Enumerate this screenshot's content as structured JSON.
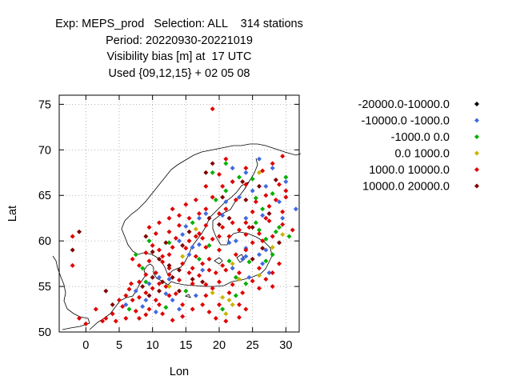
{
  "chart_data": {
    "type": "scatter",
    "title_lines": [
      "Exp: MEPS_prod   Selection: ALL    314 stations",
      "Period: 20220930-20221019",
      "Visibility bias [m] at  17 UTC",
      "Used {09,12,15} + 02 05 08"
    ],
    "xlabel": "Lon",
    "ylabel": "Lat",
    "xlim": [
      -4,
      32
    ],
    "ylim": [
      50,
      76
    ],
    "x_ticks": [
      0,
      5,
      10,
      15,
      20,
      25,
      30
    ],
    "y_ticks": [
      50,
      55,
      60,
      65,
      70,
      75
    ],
    "grid": true,
    "legend_position": "right",
    "series": [
      {
        "name": "-20000.0-10000.0",
        "color": "#000000",
        "points": []
      },
      {
        "name": "-10000.0 -1000.0",
        "color": "#4169e1",
        "points": [
          [
            26,
            69
          ],
          [
            22,
            68
          ],
          [
            28,
            68
          ],
          [
            24,
            67.5
          ],
          [
            30,
            66.5
          ],
          [
            22,
            66.5
          ],
          [
            27,
            66
          ],
          [
            25,
            65.5
          ],
          [
            23,
            64.8
          ],
          [
            29,
            64.3
          ],
          [
            31.5,
            63.5
          ],
          [
            29.5,
            62.5
          ],
          [
            24,
            62.5
          ],
          [
            26.5,
            62.8
          ],
          [
            17,
            62.5
          ],
          [
            18,
            63
          ],
          [
            15,
            61.6
          ],
          [
            14.5,
            60.7
          ],
          [
            14,
            60
          ],
          [
            16,
            59.3
          ],
          [
            21.5,
            59.8
          ],
          [
            22.5,
            60
          ],
          [
            23.5,
            58
          ],
          [
            24,
            58.3
          ],
          [
            26,
            58.5
          ],
          [
            27,
            59
          ],
          [
            26.5,
            57.5
          ],
          [
            22,
            57
          ],
          [
            24.5,
            56
          ],
          [
            27.5,
            56.5
          ],
          [
            12.5,
            55.8
          ],
          [
            11,
            56
          ],
          [
            9.5,
            55.3
          ],
          [
            12,
            54.2
          ],
          [
            14,
            52.5
          ],
          [
            16.5,
            54
          ],
          [
            9,
            53.5
          ],
          [
            7.5,
            54.5
          ],
          [
            8.5,
            52.8
          ],
          [
            10.5,
            52.2
          ],
          [
            13,
            53.5
          ],
          [
            6,
            53
          ],
          [
            15.5,
            58.5
          ],
          [
            17,
            59.6
          ],
          [
            21,
            64.3
          ],
          [
            20.5,
            62.8
          ],
          [
            24,
            59.2
          ],
          [
            17.5,
            56.8
          ]
        ]
      },
      {
        "name": "-1000.0 0.0",
        "color": "#00b000",
        "points": [
          [
            21,
            68.5
          ],
          [
            19,
            67.5
          ],
          [
            23,
            67
          ],
          [
            25,
            66.8
          ],
          [
            28,
            65.2
          ],
          [
            21,
            65.5
          ],
          [
            19.5,
            64.5
          ],
          [
            26.5,
            63.5
          ],
          [
            25.5,
            62
          ],
          [
            28.5,
            61
          ],
          [
            29,
            61.5
          ],
          [
            30.5,
            60.5
          ],
          [
            27,
            60.2
          ],
          [
            28,
            58.5
          ],
          [
            27,
            57.8
          ],
          [
            21.5,
            57.8
          ],
          [
            22.5,
            56
          ],
          [
            24,
            55.3
          ],
          [
            17,
            58
          ],
          [
            16,
            62
          ],
          [
            12.5,
            59.8
          ],
          [
            9.5,
            60
          ],
          [
            7.5,
            58.5
          ],
          [
            8.5,
            57
          ],
          [
            9,
            55.5
          ],
          [
            6.5,
            52.5
          ],
          [
            12,
            52.7
          ],
          [
            15,
            54.5
          ],
          [
            20.5,
            52.5
          ],
          [
            22.5,
            54
          ],
          [
            24.5,
            57.7
          ],
          [
            25.5,
            64.7
          ],
          [
            30,
            67
          ],
          [
            18.5,
            59.5
          ],
          [
            26,
            61.2
          ]
        ]
      },
      {
        "name": "0.0 1000.0",
        "color": "#c8b400",
        "points": [
          [
            26,
            67.5
          ],
          [
            16.5,
            61.3
          ],
          [
            23,
            55.8
          ],
          [
            20.5,
            53.8
          ],
          [
            21.5,
            53.5
          ],
          [
            22,
            53
          ],
          [
            21,
            52
          ],
          [
            26,
            56.2
          ],
          [
            12.5,
            55
          ],
          [
            19,
            54.3
          ],
          [
            22,
            57.5
          ],
          [
            28,
            59.3
          ],
          [
            29.5,
            60.7
          ],
          [
            14.5,
            58.3
          ]
        ]
      },
      {
        "name": "1000.0 10000.0",
        "color": "#e00000",
        "points": [
          [
            19,
            74.5
          ],
          [
            21,
            69
          ],
          [
            24,
            68
          ],
          [
            29.5,
            69.3
          ],
          [
            28,
            68.5
          ],
          [
            26.5,
            67.7
          ],
          [
            20,
            67.3
          ],
          [
            22,
            66.5
          ],
          [
            29,
            66.2
          ],
          [
            24,
            66.2
          ],
          [
            18,
            66
          ],
          [
            20.5,
            66
          ],
          [
            30,
            65.5
          ],
          [
            27,
            65
          ],
          [
            19,
            64.8
          ],
          [
            22.5,
            64.5
          ],
          [
            25.5,
            64.3
          ],
          [
            27.5,
            63.8
          ],
          [
            29.5,
            63.2
          ],
          [
            18,
            63.5
          ],
          [
            17,
            63
          ],
          [
            15,
            64
          ],
          [
            16.5,
            64.5
          ],
          [
            14,
            62.8
          ],
          [
            20,
            63
          ],
          [
            24,
            62
          ],
          [
            27.5,
            62.2
          ],
          [
            29.5,
            61.8
          ],
          [
            31,
            61.2
          ],
          [
            16.5,
            60.5
          ],
          [
            14,
            61.7
          ],
          [
            12.5,
            61
          ],
          [
            10.5,
            60.8
          ],
          [
            15.5,
            60
          ],
          [
            17.5,
            60.3
          ],
          [
            19,
            60.2
          ],
          [
            21.5,
            60.5
          ],
          [
            24,
            60.7
          ],
          [
            26,
            60.8
          ],
          [
            28,
            60.5
          ],
          [
            25,
            59.8
          ],
          [
            20,
            59
          ],
          [
            18,
            59.3
          ],
          [
            15,
            59.2
          ],
          [
            13,
            59.3
          ],
          [
            11,
            59
          ],
          [
            9,
            58.7
          ],
          [
            7,
            58
          ],
          [
            8,
            57.3
          ],
          [
            9.5,
            57.8
          ],
          [
            11.5,
            57.7
          ],
          [
            12.5,
            57
          ],
          [
            14.5,
            57.5
          ],
          [
            16,
            57
          ],
          [
            17.5,
            57.5
          ],
          [
            18.5,
            58
          ],
          [
            19.5,
            56.5
          ],
          [
            21,
            56.8
          ],
          [
            23,
            56.5
          ],
          [
            25,
            55.6
          ],
          [
            27,
            55.8
          ],
          [
            28,
            55
          ],
          [
            26,
            54.8
          ],
          [
            23.5,
            54.3
          ],
          [
            22,
            55.2
          ],
          [
            20,
            55.5
          ],
          [
            18,
            55.2
          ],
          [
            16,
            55.3
          ],
          [
            14,
            55.7
          ],
          [
            12.5,
            56.3
          ],
          [
            11,
            55.3
          ],
          [
            10,
            54.8
          ],
          [
            9,
            54.3
          ],
          [
            8,
            53.8
          ],
          [
            7,
            53.5
          ],
          [
            6,
            54
          ],
          [
            5.5,
            52.8
          ],
          [
            4,
            52
          ],
          [
            3,
            51.5
          ],
          [
            4.5,
            51.2
          ],
          [
            6,
            51.5
          ],
          [
            7.5,
            52.3
          ],
          [
            9,
            51.9
          ],
          [
            10.5,
            53.5
          ],
          [
            11.5,
            52
          ],
          [
            13,
            51.3
          ],
          [
            14.5,
            51.7
          ],
          [
            16,
            52.5
          ],
          [
            17.5,
            53
          ],
          [
            18.5,
            52.2
          ],
          [
            19.5,
            51.5
          ],
          [
            21,
            51.2
          ],
          [
            23,
            51.6
          ],
          [
            24,
            52.5
          ],
          [
            21.5,
            54.3
          ],
          [
            19,
            54.8
          ],
          [
            17,
            56.2
          ],
          [
            13.5,
            54.2
          ],
          [
            12,
            55
          ],
          [
            10.5,
            56.5
          ],
          [
            9,
            56.3
          ],
          [
            8,
            55.5
          ],
          [
            6.5,
            54.7
          ],
          [
            5,
            53.5
          ],
          [
            2.5,
            51.2
          ],
          [
            -1,
            51.5
          ],
          [
            0,
            50.9
          ],
          [
            1.5,
            52.5
          ],
          [
            -2,
            57.3
          ],
          [
            -2,
            60.5
          ],
          [
            9.5,
            61.5
          ],
          [
            11,
            62
          ],
          [
            12.5,
            62.5
          ],
          [
            13,
            63.5
          ],
          [
            15.5,
            62.5
          ],
          [
            18,
            61.7
          ],
          [
            20.5,
            61.5
          ],
          [
            23,
            61.2
          ],
          [
            26.5,
            60
          ],
          [
            25,
            63.2
          ],
          [
            28.5,
            64.5
          ],
          [
            30,
            64.8
          ],
          [
            22,
            62
          ],
          [
            20,
            60.5
          ],
          [
            17,
            60.8
          ],
          [
            13.5,
            60.3
          ],
          [
            11.5,
            58.3
          ],
          [
            10,
            59.5
          ],
          [
            12.5,
            58.5
          ],
          [
            16.5,
            58.3
          ],
          [
            18.5,
            56.8
          ],
          [
            20.5,
            57.3
          ],
          [
            22.5,
            58.5
          ],
          [
            24,
            59
          ],
          [
            26,
            57
          ],
          [
            28,
            56.5
          ],
          [
            29,
            57.5
          ],
          [
            23,
            53
          ],
          [
            20,
            53
          ],
          [
            18,
            54
          ],
          [
            14.5,
            53
          ],
          [
            12.5,
            54
          ],
          [
            11,
            53
          ],
          [
            9.5,
            52.5
          ],
          [
            8,
            51.5
          ],
          [
            6.8,
            55.3
          ],
          [
            15.5,
            56.5
          ],
          [
            24.5,
            61.5
          ],
          [
            27,
            62.5
          ],
          [
            21,
            63.5
          ]
        ]
      },
      {
        "name": "10000.0 20000.0",
        "color": "#800000",
        "points": [
          [
            19,
            68.5
          ],
          [
            18,
            67.5
          ],
          [
            23.5,
            66.5
          ],
          [
            26,
            66
          ],
          [
            28.5,
            66.7
          ],
          [
            20.5,
            64.8
          ],
          [
            25,
            61.5
          ],
          [
            21.5,
            62.5
          ],
          [
            14.5,
            59.5
          ],
          [
            12.5,
            57.3
          ],
          [
            11,
            58
          ],
          [
            10,
            58.8
          ],
          [
            13,
            56
          ],
          [
            11.5,
            55.5
          ],
          [
            10,
            56
          ],
          [
            8.5,
            55
          ],
          [
            9.5,
            54
          ],
          [
            11,
            54.5
          ],
          [
            14,
            54.5
          ],
          [
            3,
            54.5
          ],
          [
            -1,
            61
          ],
          [
            -2,
            59
          ],
          [
            4,
            53
          ],
          [
            16,
            55.8
          ],
          [
            14,
            56.8
          ],
          [
            17.5,
            55.5
          ],
          [
            25,
            58
          ],
          [
            26.5,
            59.2
          ],
          [
            29,
            59.8
          ],
          [
            27.5,
            63
          ],
          [
            24,
            64.5
          ],
          [
            20,
            61.8
          ],
          [
            15.5,
            61
          ],
          [
            18.5,
            62.5
          ],
          [
            12,
            59.8
          ],
          [
            9,
            60.5
          ]
        ]
      }
    ]
  }
}
